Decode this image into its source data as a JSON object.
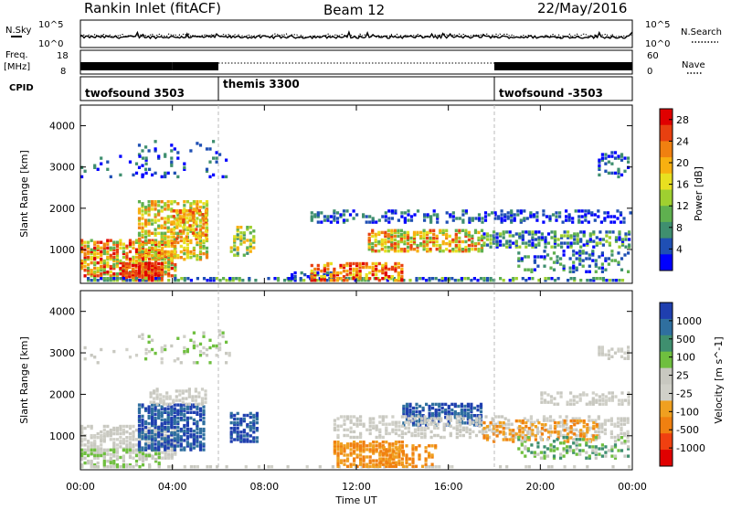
{
  "header": {
    "station": "Rankin Inlet (fitACF)",
    "beam": "Beam 12",
    "date": "22/May/2016"
  },
  "chart_data": [
    {
      "type": "line",
      "panel": "noise",
      "left_label": "N.Sky",
      "right_label": "N.Search",
      "left_ticks": [
        "10^5",
        "10^0"
      ],
      "right_ticks": [
        "10^5",
        "10^0"
      ],
      "scale": "log"
    },
    {
      "type": "line",
      "panel": "freq-nave",
      "left_label_top": "Freq.",
      "left_label_bottom": "[MHz]",
      "left_ticks": [
        18,
        8
      ],
      "right_label": "Nave",
      "right_ticks": [
        60,
        0
      ],
      "segments": [
        {
          "x": [
            0,
            4
          ],
          "state": "dense"
        },
        {
          "x": [
            6,
            18
          ],
          "state": "sparse"
        },
        {
          "x": [
            18,
            24
          ],
          "state": "dense"
        }
      ]
    },
    {
      "type": "table",
      "panel": "cpid",
      "label": "CPID",
      "segments": [
        {
          "name": "twofsound 3503",
          "start": 0
        },
        {
          "name": "themis 3300",
          "start": 6
        },
        {
          "name": "twofsound -3503",
          "start": 18
        }
      ]
    },
    {
      "type": "heatmap",
      "panel": "power",
      "ylabel": "Slant Range [km]",
      "yticks": [
        1000,
        2000,
        3000,
        4000
      ],
      "ylim": [
        180,
        4500
      ],
      "colorbar_label": "Power [dB]",
      "colorbar_ticks": [
        4,
        8,
        12,
        16,
        20,
        24,
        28
      ],
      "colorbar_range": [
        0,
        30
      ],
      "colors": [
        "#0000ff",
        "#1f4fb4",
        "#3f8f6f",
        "#5fb04f",
        "#9fd030",
        "#e8e020",
        "#f8b010",
        "#f08010",
        "#e84010",
        "#e00000"
      ]
    },
    {
      "type": "heatmap",
      "panel": "velocity",
      "ylabel": "Slant Range [km]",
      "yticks": [
        1000,
        2000,
        3000,
        4000
      ],
      "ylim": [
        180,
        4500
      ],
      "xlabel": "Time UT",
      "xticks": [
        "00:00",
        "04:00",
        "08:00",
        "12:00",
        "16:00",
        "20:00",
        "00:00"
      ],
      "xlim": [
        0,
        24
      ],
      "colorbar_label": "Velocity [m s^-1]",
      "colorbar_ticks": [
        "1000",
        "500",
        "100",
        "25",
        "-25",
        "-100",
        "-500",
        "-1000"
      ],
      "colors": [
        "#1f3faf",
        "#2f6f9f",
        "#3f8f6f",
        "#6fbf3f",
        "#c8c8c0",
        "#d0d0c8",
        "#f0a020",
        "#f08010",
        "#f04010",
        "#e00000"
      ]
    }
  ]
}
